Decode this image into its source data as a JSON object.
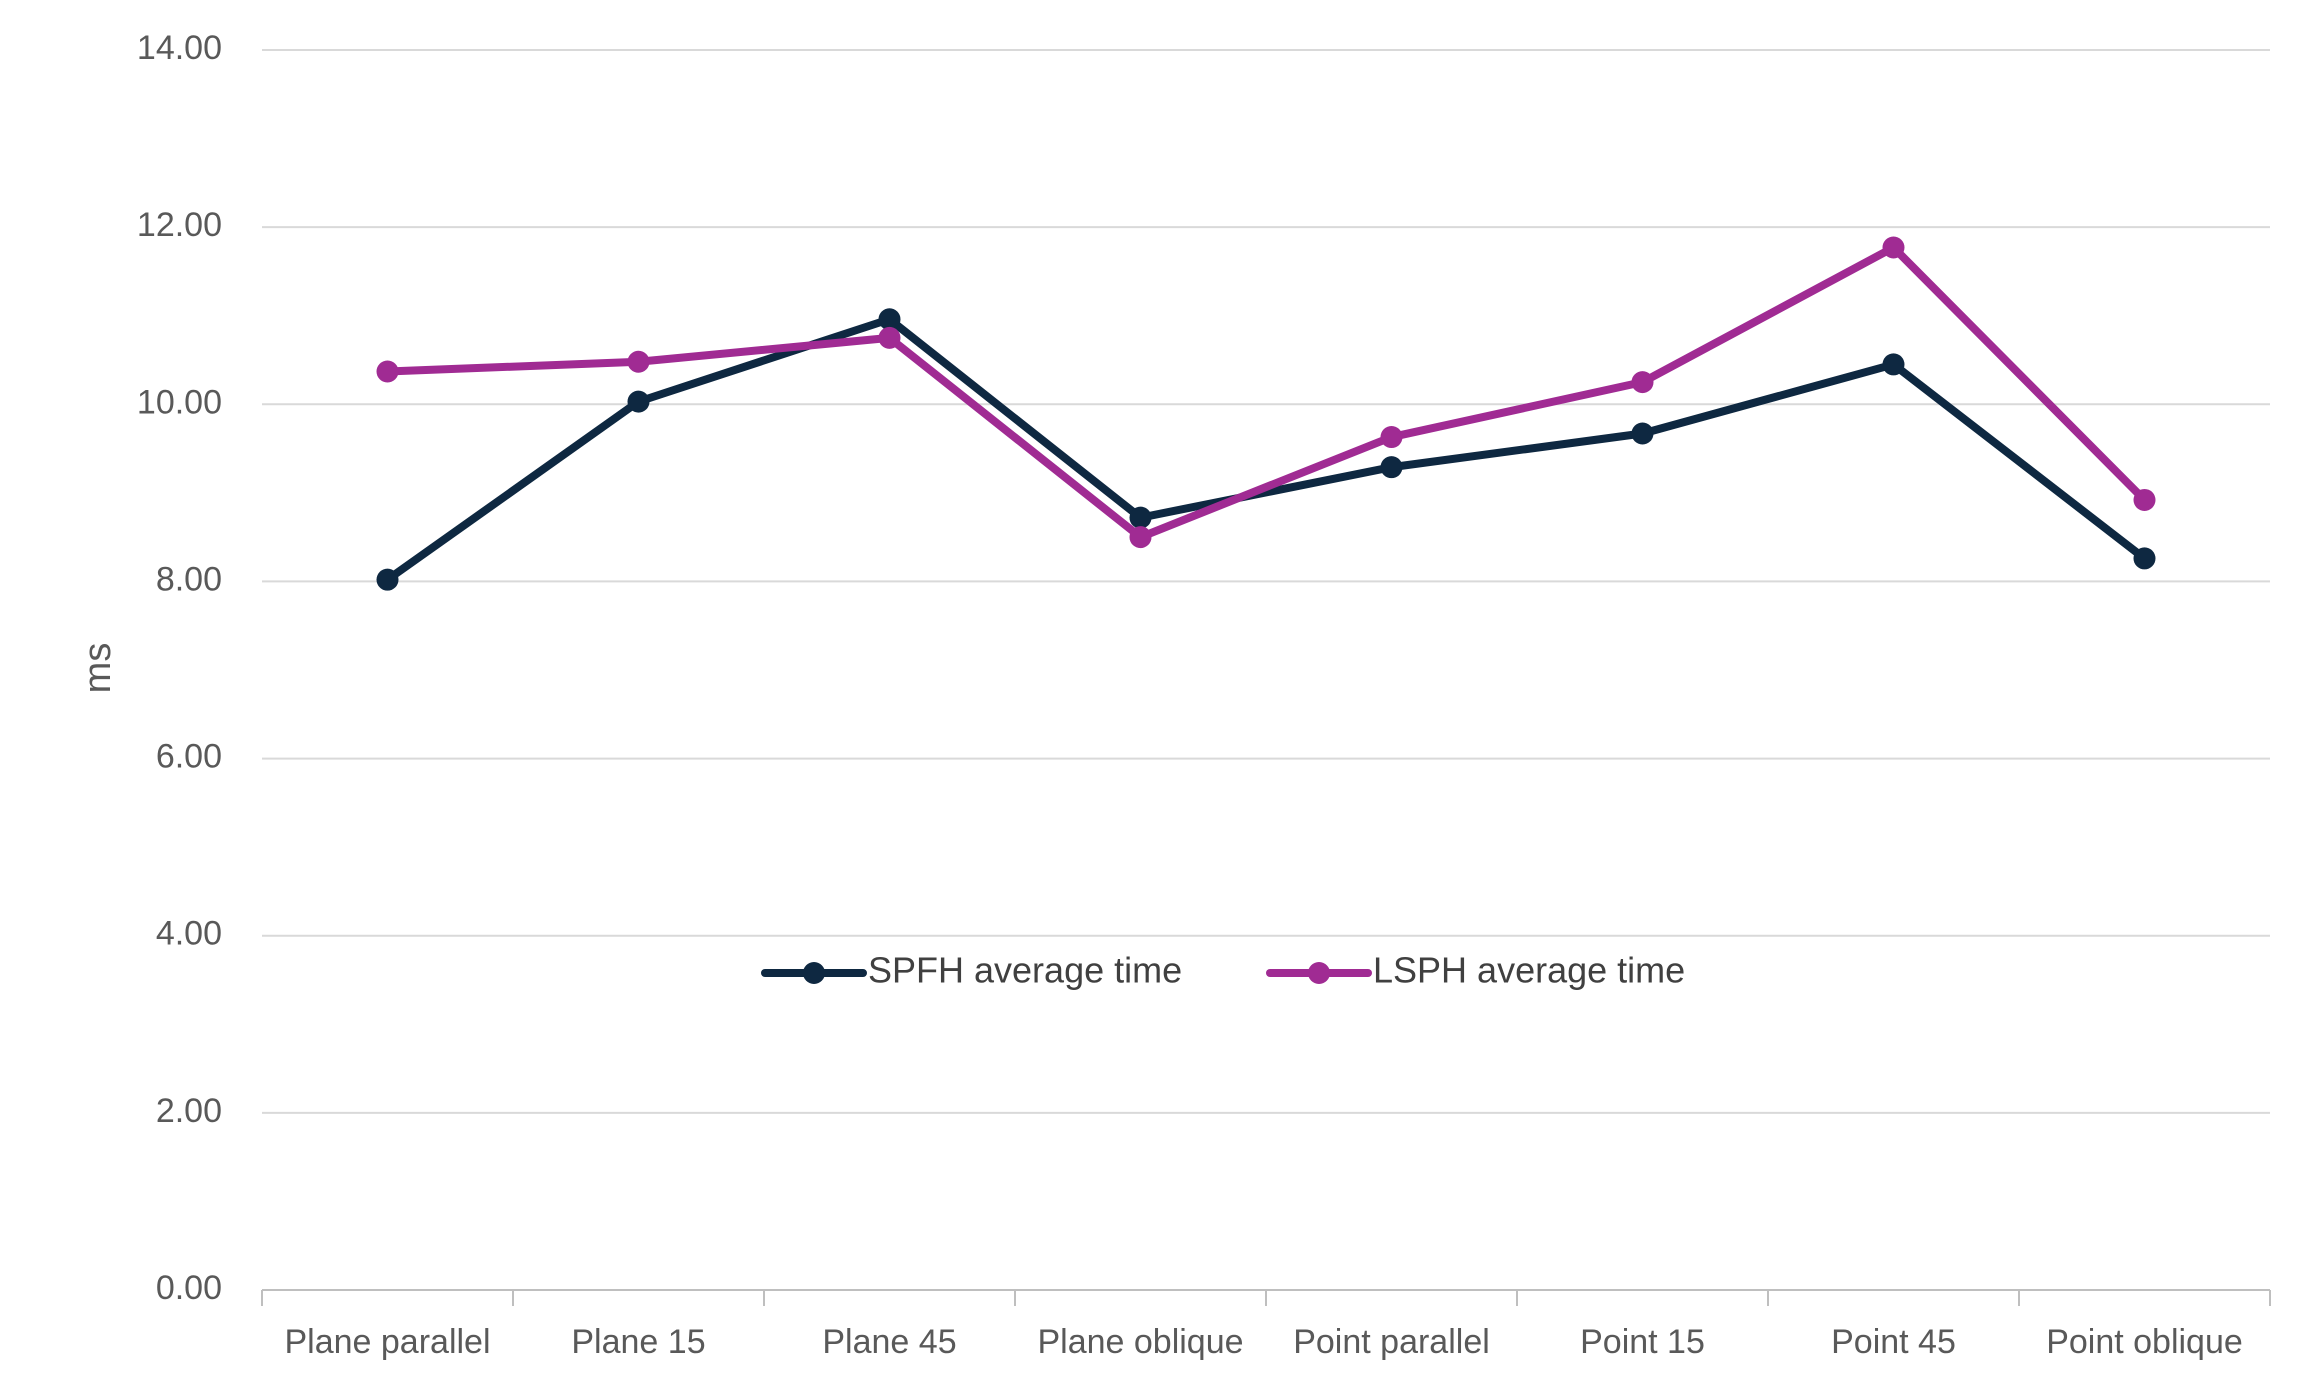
{
  "chart_data": {
    "type": "line",
    "title": "",
    "xlabel": "",
    "ylabel": "ms",
    "categories": [
      "Plane parallel",
      "Plane 15",
      "Plane 45",
      "Plane oblique",
      "Point parallel",
      "Point 15",
      "Point 45",
      "Point oblique"
    ],
    "ylim": [
      0,
      14
    ],
    "yticks": [
      0,
      2,
      4,
      6,
      8,
      10,
      12,
      14
    ],
    "ytick_labels": [
      "0.00",
      "2.00",
      "4.00",
      "6.00",
      "8.00",
      "10.00",
      "12.00",
      "14.00"
    ],
    "grid": true,
    "legend_position": "center",
    "series": [
      {
        "name": "SPFH average time",
        "color": "#0e2841",
        "values": [
          8.02,
          10.03,
          10.96,
          8.72,
          9.29,
          9.67,
          10.45,
          8.26
        ]
      },
      {
        "name": "LSPH average time",
        "color": "#a02b93",
        "values": [
          10.37,
          10.48,
          10.75,
          8.5,
          9.63,
          10.25,
          11.77,
          8.92
        ]
      }
    ]
  }
}
